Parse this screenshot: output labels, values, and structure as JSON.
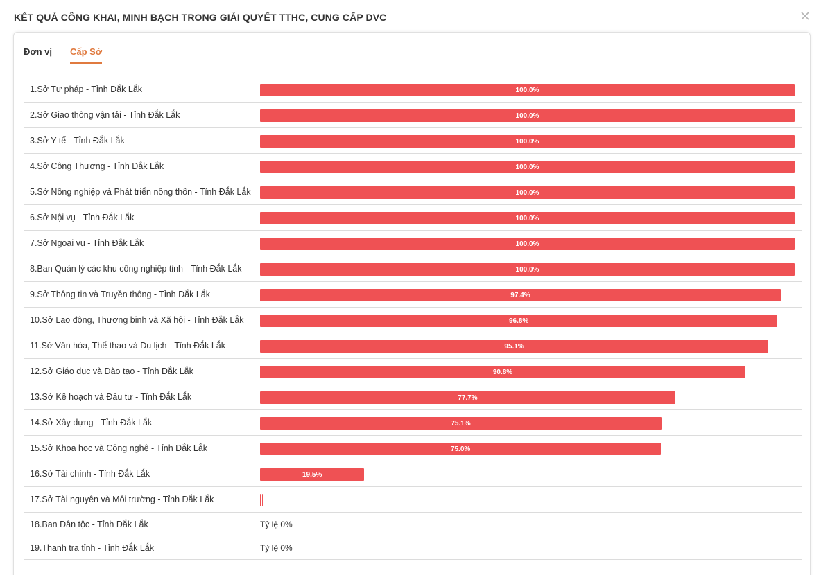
{
  "header": {
    "title": "KẾT QUẢ CÔNG KHAI, MINH BẠCH TRONG GIẢI QUYẾT TTHC, CUNG CẤP DVC",
    "close_icon": "close-icon"
  },
  "tabs": [
    {
      "label": "Đơn vị",
      "active": false
    },
    {
      "label": "Cấp Sở",
      "active": true
    }
  ],
  "colors": {
    "bar": "#ef5154",
    "active_tab": "#e07a3f"
  },
  "rows": [
    {
      "label": "1.Sở Tư pháp - Tỉnh Đắk Lắk",
      "value": 100.0,
      "value_label": "100.0%"
    },
    {
      "label": "2.Sở Giao thông vận tải - Tỉnh Đắk Lắk",
      "value": 100.0,
      "value_label": "100.0%"
    },
    {
      "label": "3.Sở Y tế - Tỉnh Đắk Lắk",
      "value": 100.0,
      "value_label": "100.0%"
    },
    {
      "label": "4.Sở Công Thương - Tỉnh Đắk Lắk",
      "value": 100.0,
      "value_label": "100.0%"
    },
    {
      "label": "5.Sở Nông nghiệp và Phát triển nông thôn - Tỉnh Đắk Lắk",
      "value": 100.0,
      "value_label": "100.0%"
    },
    {
      "label": "6.Sở Nội vụ - Tỉnh Đắk Lắk",
      "value": 100.0,
      "value_label": "100.0%"
    },
    {
      "label": "7.Sở Ngoại vụ - Tỉnh Đắk Lắk",
      "value": 100.0,
      "value_label": "100.0%"
    },
    {
      "label": "8.Ban Quản lý các khu công nghiệp tỉnh - Tỉnh Đắk Lắk",
      "value": 100.0,
      "value_label": "100.0%"
    },
    {
      "label": "9.Sở Thông tin và Truyền thông - Tỉnh Đắk Lắk",
      "value": 97.4,
      "value_label": "97.4%"
    },
    {
      "label": "10.Sở Lao động, Thương binh và Xã hội - Tỉnh Đắk Lắk",
      "value": 96.8,
      "value_label": "96.8%"
    },
    {
      "label": "11.Sở Văn hóa, Thể thao và Du lịch - Tỉnh Đắk Lắk",
      "value": 95.1,
      "value_label": "95.1%"
    },
    {
      "label": "12.Sở Giáo dục và Đào tạo - Tỉnh Đắk Lắk",
      "value": 90.8,
      "value_label": "90.8%"
    },
    {
      "label": "13.Sở Kế hoạch và Đầu tư - Tỉnh Đắk Lắk",
      "value": 77.7,
      "value_label": "77.7%"
    },
    {
      "label": "14.Sở Xây dựng - Tỉnh Đắk Lắk",
      "value": 75.1,
      "value_label": "75.1%"
    },
    {
      "label": "15.Sở Khoa học và Công nghệ - Tỉnh Đắk Lắk",
      "value": 75.0,
      "value_label": "75.0%"
    },
    {
      "label": "16.Sở Tài chính - Tỉnh Đắk Lắk",
      "value": 19.5,
      "value_label": "19.5%"
    },
    {
      "label": "17.Sở Tài nguyên và Môi trường - Tỉnh Đắk Lắk",
      "value": 0.4,
      "value_label": ""
    },
    {
      "label": "18.Ban Dân tộc - Tỉnh Đắk Lắk",
      "value": null,
      "rate_text": "Tỷ lệ 0%"
    },
    {
      "label": "19.Thanh tra tỉnh - Tỉnh Đắk Lắk",
      "value": null,
      "rate_text": "Tỷ lệ 0%"
    }
  ]
}
